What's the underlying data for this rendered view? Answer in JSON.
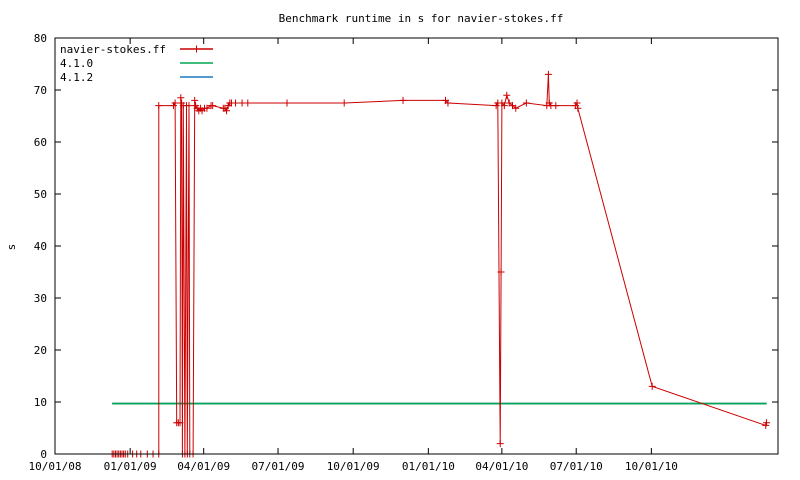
{
  "chart_data": {
    "type": "line",
    "title": "Benchmark runtime in s for navier-stokes.ff",
    "xlabel": "",
    "ylabel": "s",
    "ylim": [
      0,
      80
    ],
    "xlim": [
      "2008-10-01",
      "2011-03-05"
    ],
    "y_ticks": [
      0,
      10,
      20,
      30,
      40,
      50,
      60,
      70,
      80
    ],
    "x_ticks": [
      {
        "date": "2008-10-01",
        "label": "10/01/08"
      },
      {
        "date": "2009-01-01",
        "label": "01/01/09"
      },
      {
        "date": "2009-04-01",
        "label": "04/01/09"
      },
      {
        "date": "2009-07-01",
        "label": "07/01/09"
      },
      {
        "date": "2009-10-01",
        "label": "10/01/09"
      },
      {
        "date": "2010-01-01",
        "label": "01/01/10"
      },
      {
        "date": "2010-04-01",
        "label": "04/01/10"
      },
      {
        "date": "2010-07-01",
        "label": "07/01/10"
      },
      {
        "date": "2010-10-01",
        "label": "10/01/10"
      }
    ],
    "legend_position": "top-left",
    "grid": false,
    "series": [
      {
        "name": "navier-stokes.ff",
        "color": "#cc0000",
        "marker": "plus",
        "points": [
          {
            "x": "2008-12-10",
            "y": 0
          },
          {
            "x": "2008-12-12",
            "y": 0
          },
          {
            "x": "2008-12-14",
            "y": 0
          },
          {
            "x": "2008-12-16",
            "y": 0
          },
          {
            "x": "2008-12-18",
            "y": 0
          },
          {
            "x": "2008-12-20",
            "y": 0
          },
          {
            "x": "2008-12-22",
            "y": 0
          },
          {
            "x": "2008-12-24",
            "y": 0
          },
          {
            "x": "2008-12-26",
            "y": 0
          },
          {
            "x": "2008-12-29",
            "y": 0
          },
          {
            "x": "2009-01-04",
            "y": 0
          },
          {
            "x": "2009-01-09",
            "y": 0
          },
          {
            "x": "2009-01-14",
            "y": 0
          },
          {
            "x": "2009-01-22",
            "y": 0
          },
          {
            "x": "2009-01-29",
            "y": 0
          },
          {
            "x": "2009-02-05",
            "y": 0
          },
          {
            "x": "2009-02-05",
            "y": 67
          },
          {
            "x": "2009-02-23",
            "y": 67
          },
          {
            "x": "2009-02-25",
            "y": 67.5
          },
          {
            "x": "2009-02-27",
            "y": 6
          },
          {
            "x": "2009-03-01",
            "y": 6
          },
          {
            "x": "2009-03-03",
            "y": 6
          },
          {
            "x": "2009-03-04",
            "y": 68.5
          },
          {
            "x": "2009-03-05",
            "y": 67.5
          },
          {
            "x": "2009-03-06",
            "y": 0
          },
          {
            "x": "2009-03-07",
            "y": 67
          },
          {
            "x": "2009-03-09",
            "y": 0
          },
          {
            "x": "2009-03-11",
            "y": 67
          },
          {
            "x": "2009-03-12",
            "y": 0
          },
          {
            "x": "2009-03-14",
            "y": 67
          },
          {
            "x": "2009-03-15",
            "y": 0
          },
          {
            "x": "2009-03-19",
            "y": 0
          },
          {
            "x": "2009-03-21",
            "y": 68
          },
          {
            "x": "2009-03-22",
            "y": 67
          },
          {
            "x": "2009-03-24",
            "y": 66.5
          },
          {
            "x": "2009-03-26",
            "y": 66
          },
          {
            "x": "2009-03-28",
            "y": 66.5
          },
          {
            "x": "2009-03-30",
            "y": 66
          },
          {
            "x": "2009-04-02",
            "y": 66.5
          },
          {
            "x": "2009-04-05",
            "y": 66.5
          },
          {
            "x": "2009-04-10",
            "y": 67
          },
          {
            "x": "2009-04-12",
            "y": 67
          },
          {
            "x": "2009-04-25",
            "y": 66.5
          },
          {
            "x": "2009-04-27",
            "y": 66.5
          },
          {
            "x": "2009-04-29",
            "y": 66
          },
          {
            "x": "2009-05-01",
            "y": 67
          },
          {
            "x": "2009-05-03",
            "y": 67.5
          },
          {
            "x": "2009-05-05",
            "y": 67.5
          },
          {
            "x": "2009-05-10",
            "y": 67.5
          },
          {
            "x": "2009-05-18",
            "y": 67.5
          },
          {
            "x": "2009-05-25",
            "y": 67.5
          },
          {
            "x": "2009-07-12",
            "y": 67.5
          },
          {
            "x": "2009-09-20",
            "y": 67.5
          },
          {
            "x": "2009-12-01",
            "y": 68
          },
          {
            "x": "2010-01-22",
            "y": 68
          },
          {
            "x": "2010-01-25",
            "y": 67.5
          },
          {
            "x": "2010-03-25",
            "y": 67
          },
          {
            "x": "2010-03-27",
            "y": 67.5
          },
          {
            "x": "2010-03-30",
            "y": 2
          },
          {
            "x": "2010-03-31",
            "y": 35
          },
          {
            "x": "2010-04-01",
            "y": 67.5
          },
          {
            "x": "2010-04-04",
            "y": 67
          },
          {
            "x": "2010-04-07",
            "y": 69
          },
          {
            "x": "2010-04-10",
            "y": 67.5
          },
          {
            "x": "2010-04-14",
            "y": 67
          },
          {
            "x": "2010-04-18",
            "y": 66.5
          },
          {
            "x": "2010-05-01",
            "y": 67.5
          },
          {
            "x": "2010-05-26",
            "y": 67
          },
          {
            "x": "2010-05-28",
            "y": 73
          },
          {
            "x": "2010-05-29",
            "y": 67.5
          },
          {
            "x": "2010-05-31",
            "y": 67
          },
          {
            "x": "2010-06-06",
            "y": 67
          },
          {
            "x": "2010-06-30",
            "y": 67
          },
          {
            "x": "2010-07-02",
            "y": 67.5
          },
          {
            "x": "2010-07-03",
            "y": 66.5
          },
          {
            "x": "2010-10-02",
            "y": 13
          },
          {
            "x": "2011-02-18",
            "y": 5.5
          },
          {
            "x": "2011-02-19",
            "y": 6
          }
        ]
      },
      {
        "name": "4.1.0",
        "color": "#00a650",
        "marker": "none",
        "points": [
          {
            "x": "2008-12-10",
            "y": 9.7
          },
          {
            "x": "2011-02-19",
            "y": 9.7
          }
        ]
      },
      {
        "name": "4.1.2",
        "color": "#1a78c2",
        "marker": "none",
        "points": [
          {
            "x": "2008-12-10",
            "y": 9.7
          },
          {
            "x": "2011-02-19",
            "y": 9.7
          }
        ]
      }
    ]
  }
}
